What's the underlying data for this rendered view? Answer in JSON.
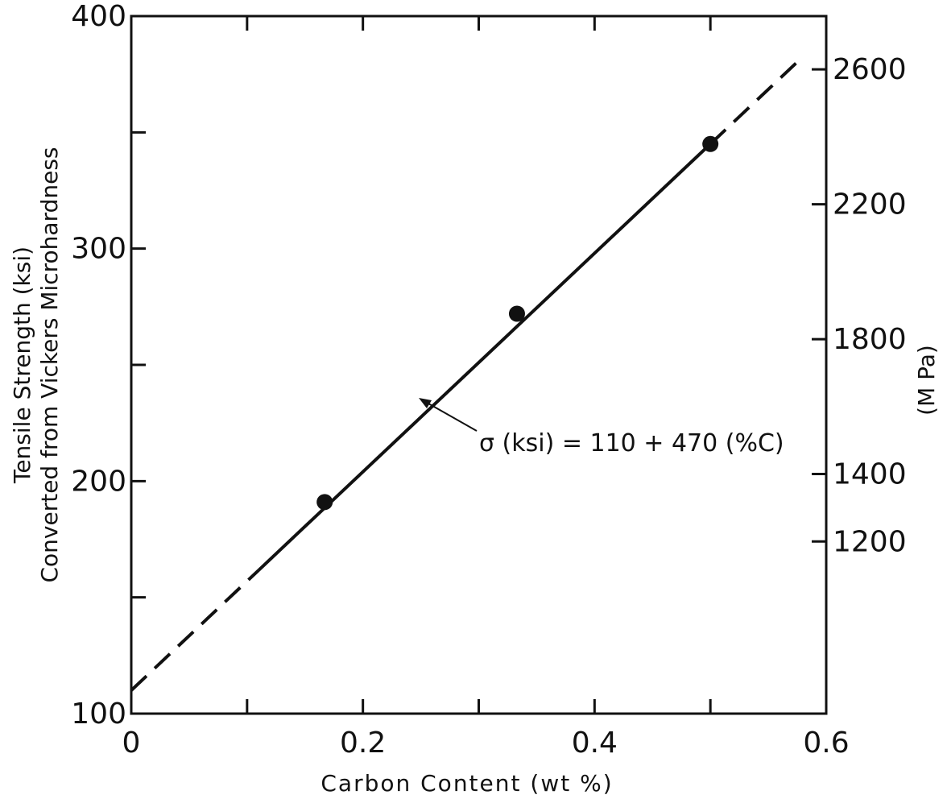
{
  "chart_data": {
    "type": "scatter",
    "x": [
      0.167,
      0.333,
      0.5
    ],
    "y": [
      191,
      272,
      345
    ],
    "xlabel": "Carbon Content (wt %)",
    "ylabel_line1": "Tensile Strength (ksi)",
    "ylabel_line2": "Converted from Vickers Microhardness",
    "y2label": "(M Pa)",
    "xlim": [
      0,
      0.6
    ],
    "ylim": [
      100,
      400
    ],
    "x_ticks": [
      0,
      0.1,
      0.2,
      0.3,
      0.4,
      0.5,
      0.6
    ],
    "x_tick_labels": [
      {
        "value": 0,
        "label": "0"
      },
      {
        "value": 0.2,
        "label": "0.2"
      },
      {
        "value": 0.4,
        "label": "0.4"
      },
      {
        "value": 0.6,
        "label": "0.6"
      }
    ],
    "y_ticks": [
      100,
      150,
      200,
      250,
      300,
      350,
      400
    ],
    "y_tick_labels": [
      {
        "value": 100,
        "label": "100"
      },
      {
        "value": 200,
        "label": "200"
      },
      {
        "value": 300,
        "label": "300"
      },
      {
        "value": 400,
        "label": "400"
      }
    ],
    "y2_ticks": [
      {
        "value": 1200,
        "label": "1200"
      },
      {
        "value": 1400,
        "label": "1400"
      },
      {
        "value": 1800,
        "label": "1800"
      },
      {
        "value": 2200,
        "label": "2200"
      },
      {
        "value": 2600,
        "label": "2600"
      }
    ],
    "y2_scale": {
      "mpa_per_ksi": 6.895
    },
    "fit_line": {
      "intercept": 110,
      "slope": 470,
      "solid_range": [
        0.11,
        0.5
      ],
      "dashed_ranges": [
        [
          0,
          0.11
        ],
        [
          0.5,
          0.58
        ]
      ]
    },
    "annotation": {
      "text": "σ (ksi) = 110 + 470 (%C)",
      "points_to_x": 0.25
    },
    "grid": false,
    "legend": "none"
  }
}
